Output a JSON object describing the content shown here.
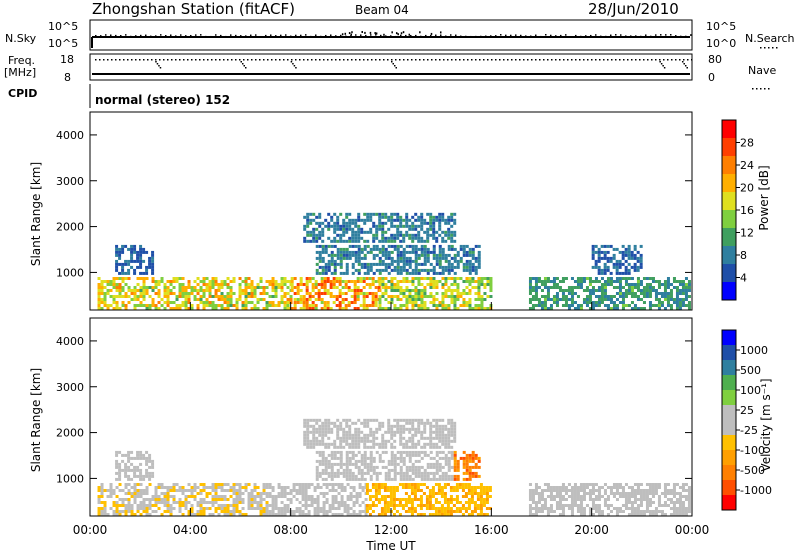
{
  "header": {
    "station": "Zhongshan Station (fitACF)",
    "beam": "Beam 04",
    "date": "28/Jun/2010"
  },
  "strip_labels": {
    "nsky": "N.Sky",
    "nsky_top": "10^5",
    "nsky_bottom": "10^0",
    "nsearch": "N.Search",
    "freq": "Freq.",
    "freq_unit": "[MHz]",
    "freq_top": "18",
    "freq_bottom": "8",
    "nave": "Nave",
    "nave_top": "80",
    "nave_bottom": "0",
    "cpid": "CPID",
    "cpid_text": "normal (stereo) 152"
  },
  "x_axis": {
    "label": "Time UT",
    "ticks": [
      "00:00",
      "04:00",
      "08:00",
      "12:00",
      "16:00",
      "20:00",
      "00:00"
    ]
  },
  "panels": {
    "power": {
      "ylabel": "Slant Range [km]",
      "yticks": [
        "1000",
        "2000",
        "3000",
        "4000"
      ],
      "colorbar_label": "Power [dB]",
      "colorbar_ticks": [
        "4",
        "8",
        "12",
        "16",
        "20",
        "24",
        "28"
      ],
      "colors": [
        "#0000ff",
        "#1f4fa8",
        "#2f7f9f",
        "#3f9f5f",
        "#7fcf3f",
        "#dfdf1f",
        "#ffaf00",
        "#ff7f00",
        "#ff3f00",
        "#ff0000"
      ]
    },
    "velocity": {
      "ylabel": "Slant Range [km]",
      "yticks": [
        "1000",
        "2000",
        "3000",
        "4000"
      ],
      "colorbar_label": "Velocity [m s⁻¹]",
      "colorbar_ticks": [
        "1000",
        "500",
        "100",
        "25",
        "-25",
        "-100",
        "-500",
        "-1000"
      ],
      "colors": [
        "#0000ff",
        "#1f4fa8",
        "#2f7f9f",
        "#4faf4f",
        "#7fcf3f",
        "#bebebe",
        "#bebebe",
        "#ffc000",
        "#ff9f00",
        "#ff7f00",
        "#ff4f00",
        "#ff0000"
      ]
    }
  },
  "chart_data": [
    {
      "type": "heatmap",
      "title": "Power",
      "xlabel": "Time UT",
      "ylabel": "Slant Range [km]",
      "xlim": [
        "00:00",
        "24:00"
      ],
      "ylim": [
        180,
        4500
      ],
      "colorbar": {
        "label": "Power [dB]",
        "range": [
          0,
          32
        ]
      },
      "rows": [
        {
          "y0": 200,
          "y1": 900,
          "segments": [
            {
              "t0": 0.3,
              "t1": 8.0,
              "v": 18
            },
            {
              "t0": 8.0,
              "t1": 11.5,
              "v": 22
            },
            {
              "t0": 11.5,
              "t1": 16.0,
              "v": 16
            },
            {
              "t0": 17.5,
              "t1": 23.9,
              "v": 10
            }
          ]
        },
        {
          "y0": 1000,
          "y1": 1600,
          "segments": [
            {
              "t0": 1.0,
              "t1": 2.5,
              "v": 6
            },
            {
              "t0": 9.0,
              "t1": 15.5,
              "v": 8
            },
            {
              "t0": 20.0,
              "t1": 22.0,
              "v": 6
            }
          ]
        },
        {
          "y0": 1700,
          "y1": 2300,
          "segments": [
            {
              "t0": 8.5,
              "t1": 14.5,
              "v": 8
            }
          ]
        }
      ]
    },
    {
      "type": "heatmap",
      "title": "Velocity",
      "xlabel": "Time UT",
      "ylabel": "Slant Range [km]",
      "xlim": [
        "00:00",
        "24:00"
      ],
      "ylim": [
        180,
        4500
      ],
      "colorbar": {
        "label": "Velocity [m s⁻¹]",
        "range": [
          -1000,
          1000
        ]
      },
      "rows": [
        {
          "y0": 200,
          "y1": 900,
          "segments": [
            {
              "t0": 0.3,
              "t1": 7.0,
              "v": -150
            },
            {
              "t0": 7.0,
              "t1": 11.0,
              "v": 80
            },
            {
              "t0": 11.0,
              "t1": 16.0,
              "v": -300
            },
            {
              "t0": 17.5,
              "t1": 23.9,
              "v": -120
            }
          ]
        },
        {
          "y0": 1000,
          "y1": 1600,
          "segments": [
            {
              "t0": 1.0,
              "t1": 2.5,
              "v": 0
            },
            {
              "t0": 9.0,
              "t1": 14.5,
              "v": 0
            },
            {
              "t0": 14.5,
              "t1": 15.5,
              "v": -600
            }
          ]
        },
        {
          "y0": 1700,
          "y1": 2300,
          "segments": [
            {
              "t0": 8.5,
              "t1": 14.5,
              "v": 0
            }
          ]
        }
      ]
    }
  ]
}
